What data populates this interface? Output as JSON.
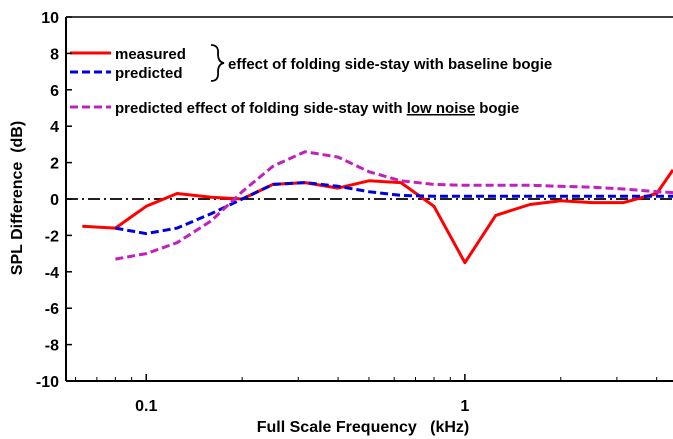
{
  "chart_data": {
    "type": "line",
    "xlabel": "Full Scale Frequency   (kHz)",
    "ylabel": "SPL Difference  (dB)",
    "x_scale": "log",
    "xlim": [
      0.056,
      4.5
    ],
    "ylim": [
      -10,
      10
    ],
    "x_ticks": [
      {
        "value": 0.1,
        "label": "0.1"
      },
      {
        "value": 1,
        "label": "1"
      }
    ],
    "y_ticks": [
      {
        "value": 10,
        "label": "10"
      },
      {
        "value": 8,
        "label": "8"
      },
      {
        "value": 6,
        "label": "6"
      },
      {
        "value": 4,
        "label": "4"
      },
      {
        "value": 2,
        "label": "2"
      },
      {
        "value": 0,
        "label": "0"
      },
      {
        "value": -2,
        "label": "-2"
      },
      {
        "value": -4,
        "label": "-4"
      },
      {
        "value": -6,
        "label": "-6"
      },
      {
        "value": -8,
        "label": "-8"
      },
      {
        "value": -10,
        "label": "-10"
      }
    ],
    "reference_line": {
      "y": 0,
      "style": "dash-dot",
      "color": "#000000"
    },
    "series": [
      {
        "name": "measured",
        "color": "#ff0000",
        "style": "solid",
        "x": [
          0.063,
          0.08,
          0.1,
          0.125,
          0.16,
          0.2,
          0.25,
          0.315,
          0.4,
          0.5,
          0.63,
          0.8,
          1.0,
          1.25,
          1.6,
          2.0,
          2.5,
          3.15,
          4.0,
          4.5
        ],
        "y": [
          -1.5,
          -1.6,
          -0.4,
          0.3,
          0.1,
          0.0,
          0.8,
          0.9,
          0.6,
          1.0,
          0.9,
          -0.4,
          -3.5,
          -0.9,
          -0.3,
          -0.1,
          -0.2,
          -0.2,
          0.3,
          1.6
        ]
      },
      {
        "name": "predicted",
        "color": "#0000dd",
        "style": "dashed",
        "x": [
          0.08,
          0.1,
          0.125,
          0.16,
          0.2,
          0.25,
          0.315,
          0.4,
          0.5,
          0.63,
          0.8,
          1.0,
          1.25,
          1.6,
          2.0,
          2.5,
          3.15,
          4.0,
          4.5
        ],
        "y": [
          -1.6,
          -1.9,
          -1.6,
          -0.8,
          0.0,
          0.8,
          0.9,
          0.7,
          0.4,
          0.2,
          0.15,
          0.15,
          0.15,
          0.15,
          0.15,
          0.15,
          0.15,
          0.15,
          0.15
        ]
      },
      {
        "name": "predicted effect of folding side-stay with low noise bogie",
        "color": "#c020c0",
        "style": "dashed",
        "x": [
          0.08,
          0.1,
          0.125,
          0.16,
          0.2,
          0.25,
          0.315,
          0.4,
          0.5,
          0.63,
          0.8,
          1.0,
          1.25,
          1.6,
          2.0,
          2.5,
          3.15,
          4.0,
          4.5
        ],
        "y": [
          -3.3,
          -3.0,
          -2.4,
          -1.2,
          0.4,
          1.8,
          2.6,
          2.3,
          1.5,
          1.0,
          0.8,
          0.75,
          0.75,
          0.75,
          0.7,
          0.65,
          0.55,
          0.4,
          0.35
        ]
      }
    ],
    "legend": {
      "placement": "top-left",
      "group_label": "effect of folding side-stay with baseline bogie",
      "third_prefix": "predicted effect of folding side-stay with ",
      "third_underlined": "low noise",
      "third_suffix": " bogie"
    }
  }
}
